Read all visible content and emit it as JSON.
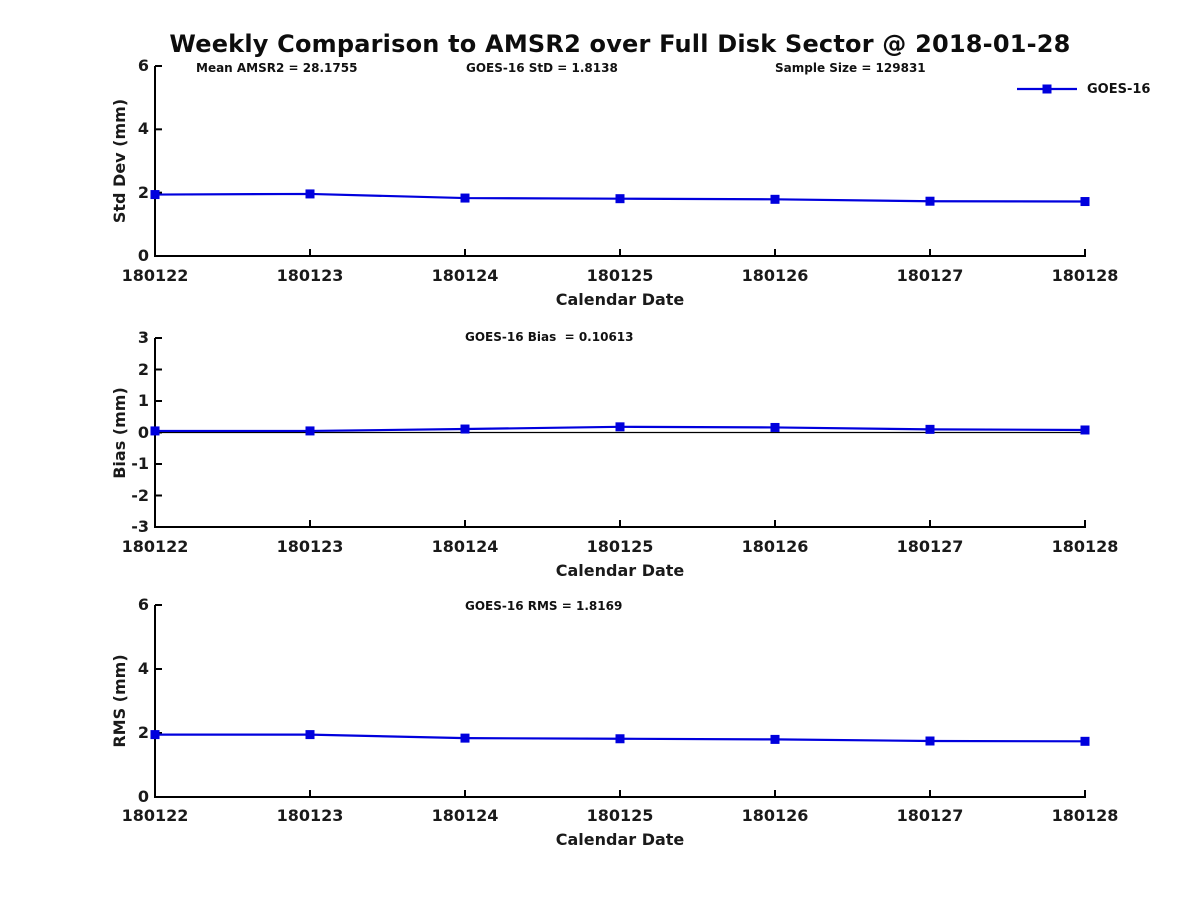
{
  "figure": {
    "title": "Weekly Comparison to AMSR2 over Full Disk Sector @ 2018-01-28",
    "legend": {
      "label": "GOES-16"
    },
    "colors": {
      "line": "#0000dd",
      "axis": "#000000",
      "text": "#1a1a1a"
    }
  },
  "chart_data": [
    {
      "type": "line",
      "x_tick_labels": [
        "180122",
        "180123",
        "180124",
        "180125",
        "180126",
        "180127",
        "180128"
      ],
      "xlabel": "Calendar Date",
      "ylabel": "Std Dev (mm)",
      "ylim": [
        0,
        6
      ],
      "yticks": [
        0,
        2,
        4,
        6
      ],
      "grid": false,
      "legend_position": "top-right-outside",
      "zero_line": false,
      "series": [
        {
          "name": "GOES-16",
          "marker": "square",
          "values": [
            1.94,
            1.96,
            1.83,
            1.81,
            1.79,
            1.73,
            1.72
          ]
        }
      ],
      "annotations": [
        "Mean AMSR2 = 28.1755",
        "GOES-16 StD = 1.8138",
        "Sample Size = 129831"
      ]
    },
    {
      "type": "line",
      "x_tick_labels": [
        "180122",
        "180123",
        "180124",
        "180125",
        "180126",
        "180127",
        "180128"
      ],
      "xlabel": "Calendar Date",
      "ylabel": "Bias (mm)",
      "ylim": [
        -3,
        3
      ],
      "yticks": [
        3,
        2,
        1,
        0,
        -1,
        -2,
        -3
      ],
      "grid": false,
      "zero_line": true,
      "series": [
        {
          "name": "GOES-16",
          "marker": "square",
          "values": [
            0.05,
            0.05,
            0.11,
            0.18,
            0.16,
            0.1,
            0.08
          ]
        }
      ],
      "annotations": [
        "GOES-16 Bias  = 0.10613"
      ]
    },
    {
      "type": "line",
      "x_tick_labels": [
        "180122",
        "180123",
        "180124",
        "180125",
        "180126",
        "180127",
        "180128"
      ],
      "xlabel": "Calendar Date",
      "ylabel": "RMS (mm)",
      "ylim": [
        0,
        6
      ],
      "yticks": [
        0,
        2,
        4,
        6
      ],
      "grid": false,
      "zero_line": false,
      "series": [
        {
          "name": "GOES-16",
          "marker": "square",
          "values": [
            1.95,
            1.95,
            1.84,
            1.82,
            1.8,
            1.75,
            1.74
          ]
        }
      ],
      "annotations": [
        "GOES-16 RMS = 1.8169"
      ]
    }
  ]
}
